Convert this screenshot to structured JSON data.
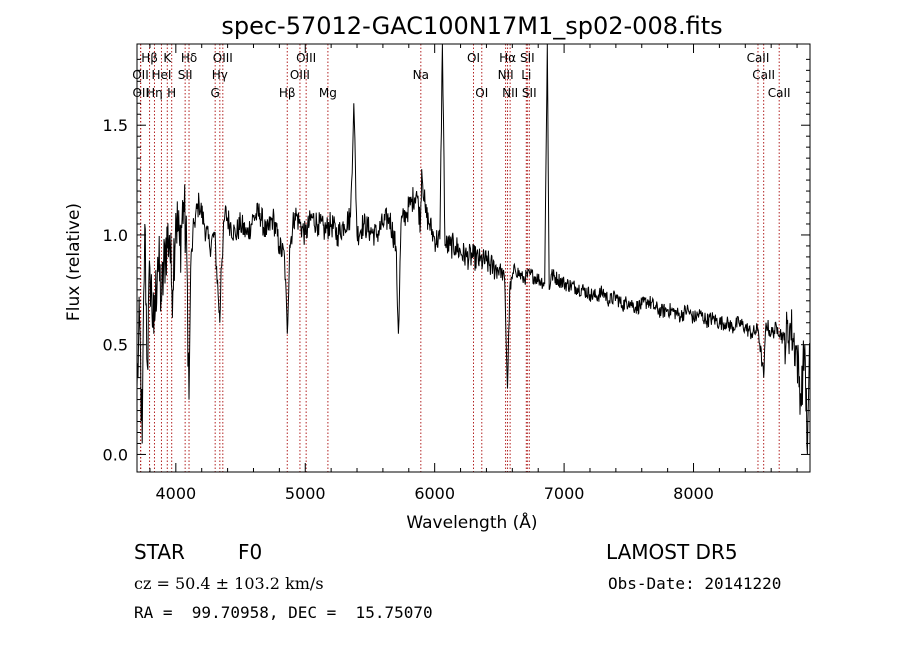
{
  "chart_data": {
    "type": "line",
    "title": "spec-57012-GAC100N17M1_sp02-008.fits",
    "xlabel": "Wavelength (Å)",
    "ylabel": "Flux (relative)",
    "xlim": [
      3700,
      8900
    ],
    "ylim": [
      -0.08,
      1.87
    ],
    "xticks": [
      4000,
      5000,
      6000,
      7000,
      8000
    ],
    "xtick_labels": [
      "4000",
      "5000",
      "6000",
      "7000",
      "8000"
    ],
    "yticks": [
      0.0,
      0.5,
      1.0,
      1.5
    ],
    "ytick_labels": [
      "0.0",
      "0.5",
      "1.0",
      "1.5"
    ],
    "grid": false,
    "line_color": "#000000",
    "marker_color": "#b22222",
    "spectrum": {
      "x": [
        3700,
        3720,
        3740,
        3760,
        3780,
        3800,
        3830,
        3860,
        3890,
        3920,
        3950,
        3970,
        4000,
        4030,
        4060,
        4085,
        4102,
        4115,
        4140,
        4180,
        4220,
        4260,
        4300,
        4330,
        4340,
        4350,
        4380,
        4420,
        4460,
        4500,
        4550,
        4600,
        4650,
        4700,
        4750,
        4800,
        4840,
        4861,
        4880,
        4920,
        4960,
        5000,
        5050,
        5100,
        5150,
        5200,
        5250,
        5300,
        5350,
        5375,
        5400,
        5450,
        5500,
        5550,
        5600,
        5650,
        5700,
        5720,
        5740,
        5780,
        5820,
        5860,
        5890,
        5900,
        5930,
        5960,
        6000,
        6040,
        6060,
        6080,
        6120,
        6160,
        6200,
        6250,
        6300,
        6350,
        6400,
        6450,
        6500,
        6540,
        6563,
        6580,
        6620,
        6680,
        6740,
        6800,
        6850,
        6870,
        6885,
        6900,
        6950,
        7000,
        7050,
        7100,
        7150,
        7200,
        7250,
        7300,
        7350,
        7400,
        7450,
        7500,
        7550,
        7600,
        7650,
        7700,
        7750,
        7800,
        7850,
        7900,
        7950,
        8000,
        8050,
        8100,
        8150,
        8200,
        8250,
        8300,
        8350,
        8400,
        8450,
        8500,
        8542,
        8560,
        8600,
        8650,
        8700,
        8750,
        8800,
        8830,
        8860,
        8880,
        8900
      ],
      "y": [
        0.3,
        0.6,
        0.05,
        1.05,
        0.4,
        0.85,
        0.55,
        0.9,
        0.7,
        0.95,
        1.0,
        0.75,
        1.1,
        0.95,
        1.15,
        0.9,
        0.25,
        0.85,
        1.05,
        1.15,
        1.05,
        0.95,
        1.0,
        0.7,
        0.6,
        0.85,
        1.1,
        1.05,
        1.0,
        1.05,
        1.0,
        1.08,
        1.1,
        1.0,
        1.08,
        0.95,
        0.9,
        0.55,
        0.95,
        1.1,
        1.05,
        1.0,
        1.08,
        1.05,
        1.02,
        1.05,
        1.0,
        1.05,
        1.08,
        1.6,
        1.0,
        1.05,
        1.02,
        1.0,
        1.05,
        1.08,
        0.95,
        0.55,
        1.05,
        1.1,
        1.15,
        1.2,
        1.05,
        1.3,
        1.1,
        1.05,
        0.98,
        0.98,
        1.87,
        0.95,
        0.95,
        0.95,
        0.92,
        0.9,
        0.9,
        0.88,
        0.88,
        0.85,
        0.85,
        0.8,
        0.3,
        0.75,
        0.85,
        0.8,
        0.82,
        0.8,
        0.78,
        1.87,
        0.75,
        0.82,
        0.8,
        0.78,
        0.77,
        0.76,
        0.75,
        0.73,
        0.72,
        0.74,
        0.7,
        0.72,
        0.68,
        0.7,
        0.67,
        0.68,
        0.7,
        0.67,
        0.65,
        0.66,
        0.65,
        0.63,
        0.66,
        0.62,
        0.64,
        0.61,
        0.62,
        0.6,
        0.6,
        0.58,
        0.6,
        0.58,
        0.55,
        0.57,
        0.35,
        0.6,
        0.55,
        0.58,
        0.52,
        0.58,
        0.45,
        0.25,
        0.5,
        0.0,
        0.5
      ]
    },
    "lines": [
      {
        "label": "Hβ",
        "wave": 3797,
        "row": 1
      },
      {
        "label": "OII",
        "wave": 3727,
        "row": 2
      },
      {
        "label": "OII",
        "wave": 3729,
        "row": 3
      },
      {
        "label": "Hη",
        "wave": 3835,
        "row": 3
      },
      {
        "label": "HeI",
        "wave": 3889,
        "row": 2
      },
      {
        "label": "K",
        "wave": 3934,
        "row": 1
      },
      {
        "label": "H",
        "wave": 3968,
        "row": 3
      },
      {
        "label": "SII",
        "wave": 4072,
        "row": 2
      },
      {
        "label": "Hδ",
        "wave": 4102,
        "row": 1
      },
      {
        "label": "OIII",
        "wave": 4363,
        "row": 1
      },
      {
        "label": "Hγ",
        "wave": 4340,
        "row": 2
      },
      {
        "label": "G",
        "wave": 4304,
        "row": 3
      },
      {
        "label": "Hβ",
        "wave": 4861,
        "row": 3
      },
      {
        "label": "OIII",
        "wave": 5007,
        "row": 1
      },
      {
        "label": "OIII",
        "wave": 4959,
        "row": 2
      },
      {
        "label": "Mg",
        "wave": 5175,
        "row": 3
      },
      {
        "label": "Na",
        "wave": 5893,
        "row": 2
      },
      {
        "label": "OI",
        "wave": 6300,
        "row": 1
      },
      {
        "label": "OI",
        "wave": 6364,
        "row": 3
      },
      {
        "label": "Hα",
        "wave": 6563,
        "row": 1
      },
      {
        "label": "NII",
        "wave": 6548,
        "row": 2
      },
      {
        "label": "NII",
        "wave": 6583,
        "row": 3
      },
      {
        "label": "SII",
        "wave": 6716,
        "row": 1
      },
      {
        "label": "Li",
        "wave": 6708,
        "row": 2
      },
      {
        "label": "SII",
        "wave": 6731,
        "row": 3
      },
      {
        "label": "CaII",
        "wave": 8498,
        "row": 1
      },
      {
        "label": "CaII",
        "wave": 8542,
        "row": 2
      },
      {
        "label": "CaII",
        "wave": 8662,
        "row": 3
      }
    ]
  },
  "info": {
    "object_class": "STAR",
    "subclass": "F0",
    "survey": "LAMOST DR5",
    "redshift_text": "cz = 50.4 ± 103.2 km/s",
    "obs_date": "Obs-Date: 20141220",
    "coords": "RA =  99.70958, DEC =  15.75070"
  }
}
